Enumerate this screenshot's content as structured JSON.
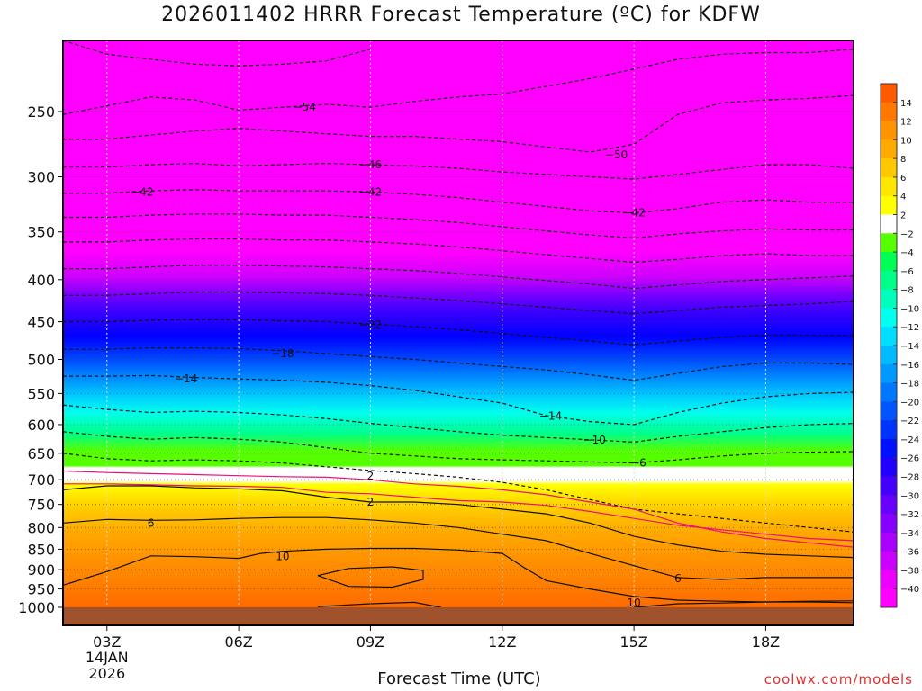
{
  "title": "2026011402 HRRR Forecast Temperature (ºC) for KDFW",
  "credit": "coolwx.com/models",
  "chart_data": {
    "type": "heatmap",
    "title": "2026011402 HRRR Forecast Temperature (ºC) for KDFW",
    "xlabel": "Forecast Time (UTC)",
    "ylabel": "",
    "x_ticks": [
      "03Z",
      "06Z",
      "09Z",
      "12Z",
      "15Z",
      "18Z"
    ],
    "x_tick_hours": [
      3,
      6,
      9,
      12,
      15,
      18
    ],
    "x_date_label": [
      "14JAN",
      "2026"
    ],
    "xlim_hours": [
      2,
      20
    ],
    "y_ticks": [
      250,
      300,
      350,
      400,
      450,
      500,
      550,
      600,
      650,
      700,
      750,
      800,
      850,
      900,
      950,
      1000
    ],
    "ylim_hpa": [
      1000,
      200
    ],
    "y_scale": "log-pressure",
    "grid": true,
    "colorbar_labels": [
      14,
      12,
      10,
      8,
      6,
      4,
      2,
      -2,
      -4,
      -6,
      -8,
      -10,
      -12,
      -14,
      -16,
      -18,
      -20,
      -22,
      -24,
      -26,
      -28,
      -30,
      -32,
      -34,
      -36,
      -38,
      -40
    ],
    "colorbar_colors": [
      "#ff5a00",
      "#ff7800",
      "#ff9400",
      "#ffaa00",
      "#ffc800",
      "#ffe600",
      "#ffff00",
      "#ffffff",
      "#55ff00",
      "#00ff55",
      "#00ff88",
      "#00ffbb",
      "#00ffee",
      "#00ddff",
      "#00bbff",
      "#0099ff",
      "#0077ff",
      "#0055ff",
      "#0033ff",
      "#0011ff",
      "#2200ff",
      "#4400ff",
      "#6600ff",
      "#8800ff",
      "#aa00ff",
      "#cc00ff",
      "#ee00ff",
      "#ff00ff"
    ],
    "ground_color": "#a0522d",
    "contour_labels": [
      {
        "value": -54,
        "hour": 7.5,
        "hpa": 247
      },
      {
        "value": -50,
        "hour": 14.6,
        "hpa": 282
      },
      {
        "value": -46,
        "hour": 9,
        "hpa": 290
      },
      {
        "value": -42,
        "hour": 3.8,
        "hpa": 313
      },
      {
        "value": -42,
        "hour": 9,
        "hpa": 313
      },
      {
        "value": -42,
        "hour": 15,
        "hpa": 332
      },
      {
        "value": -22,
        "hour": 9,
        "hpa": 454
      },
      {
        "value": -18,
        "hour": 7,
        "hpa": 492
      },
      {
        "value": -14,
        "hour": 4.8,
        "hpa": 528
      },
      {
        "value": -14,
        "hour": 13.1,
        "hpa": 586
      },
      {
        "value": -10,
        "hour": 14.1,
        "hpa": 626
      },
      {
        "value": -6,
        "hour": 15.1,
        "hpa": 668
      },
      {
        "value": 2,
        "hour": 9,
        "hpa": 693
      },
      {
        "value": 2,
        "hour": 9,
        "hpa": 745
      },
      {
        "value": 6,
        "hour": 4,
        "hpa": 790
      },
      {
        "value": 10,
        "hour": 7,
        "hpa": 868
      },
      {
        "value": 6,
        "hour": 16,
        "hpa": 923
      },
      {
        "value": 10,
        "hour": 15,
        "hpa": 987
      }
    ],
    "contours": [
      {
        "value": -58,
        "style": "dashed",
        "hours": [
          2,
          3,
          4,
          5,
          6,
          7,
          8,
          9
        ],
        "hpa": [
          205,
          213,
          216,
          219,
          220,
          219,
          217,
          210
        ]
      },
      {
        "value": -54,
        "style": "dashed",
        "hours": [
          2,
          3,
          4,
          5,
          6,
          7,
          8,
          9,
          10,
          11,
          12,
          13,
          14,
          15,
          16,
          17,
          18,
          19,
          20
        ],
        "hpa": [
          252,
          246,
          240,
          242,
          249,
          247,
          245,
          247,
          243,
          240,
          238,
          233,
          228,
          222,
          216,
          213,
          212,
          212,
          210
        ]
      },
      {
        "value": -50,
        "style": "dashed",
        "hours": [
          2,
          3,
          4,
          5,
          6,
          7,
          8,
          9,
          10,
          11,
          12,
          13,
          14,
          15,
          16,
          17,
          18,
          19,
          20
        ],
        "hpa": [
          270,
          270,
          267,
          264,
          262,
          264,
          266,
          268,
          268,
          270,
          272,
          276,
          280,
          274,
          252,
          244,
          242,
          241,
          239
        ]
      },
      {
        "value": -46,
        "style": "dashed",
        "hours": [
          2,
          3,
          4,
          5,
          6,
          7,
          8,
          9,
          10,
          11,
          12,
          13,
          14,
          15,
          16,
          17,
          18,
          19,
          20
        ],
        "hpa": [
          292,
          292,
          290,
          289,
          291,
          290,
          289,
          290,
          291,
          293,
          296,
          298,
          300,
          302,
          298,
          294,
          290,
          290,
          293
        ]
      },
      {
        "value": -42,
        "style": "dashed",
        "hours": [
          2,
          3,
          4,
          5,
          6,
          7,
          8,
          9,
          10,
          11,
          12,
          13,
          14,
          15,
          16,
          17,
          18,
          19,
          20
        ],
        "hpa": [
          314,
          314,
          312,
          311,
          312,
          312,
          312,
          313,
          315,
          318,
          322,
          326,
          330,
          332,
          328,
          322,
          320,
          322,
          322
        ]
      },
      {
        "value": -38,
        "style": "dashed",
        "hours": [
          2,
          3,
          4,
          5,
          6,
          7,
          8,
          9,
          10,
          11,
          12,
          13,
          14,
          15,
          16,
          17,
          18,
          19,
          20
        ],
        "hpa": [
          336,
          336,
          334,
          333,
          333,
          334,
          334,
          336,
          338,
          341,
          345,
          349,
          353,
          356,
          352,
          349,
          347,
          348,
          348
        ]
      },
      {
        "value": -34,
        "style": "dashed",
        "hours": [
          2,
          3,
          4,
          5,
          6,
          7,
          8,
          9,
          10,
          11,
          12,
          13,
          14,
          15,
          16,
          17,
          18,
          19,
          20
        ],
        "hpa": [
          360,
          360,
          358,
          357,
          357,
          358,
          358,
          360,
          362,
          365,
          369,
          373,
          377,
          381,
          378,
          374,
          372,
          374,
          374
        ]
      },
      {
        "value": -30,
        "style": "dashed",
        "hours": [
          2,
          3,
          4,
          5,
          6,
          7,
          8,
          9,
          10,
          11,
          12,
          13,
          14,
          15,
          16,
          17,
          18,
          19,
          20
        ],
        "hpa": [
          388,
          388,
          386,
          384,
          384,
          385,
          386,
          388,
          390,
          393,
          397,
          401,
          405,
          410,
          406,
          402,
          400,
          398,
          396
        ]
      },
      {
        "value": -26,
        "style": "dashed",
        "hours": [
          2,
          3,
          4,
          5,
          6,
          7,
          8,
          9,
          10,
          11,
          12,
          13,
          14,
          15,
          16,
          17,
          18,
          19,
          20
        ],
        "hpa": [
          418,
          418,
          416,
          414,
          414,
          415,
          416,
          418,
          421,
          424,
          428,
          432,
          436,
          440,
          436,
          432,
          430,
          428,
          425
        ]
      },
      {
        "value": -22,
        "style": "dashed",
        "hours": [
          2,
          3,
          4,
          5,
          6,
          7,
          8,
          9,
          10,
          11,
          12,
          13,
          14,
          15,
          16,
          17,
          18,
          19,
          20
        ],
        "hpa": [
          450,
          450,
          448,
          447,
          447,
          449,
          450,
          453,
          456,
          460,
          465,
          470,
          475,
          480,
          475,
          470,
          467,
          467,
          468
        ]
      },
      {
        "value": -18,
        "style": "dashed",
        "hours": [
          2,
          3,
          4,
          5,
          6,
          7,
          8,
          9,
          10,
          11,
          12,
          13,
          14,
          15,
          16,
          17,
          18,
          19,
          20
        ],
        "hpa": [
          486,
          486,
          484,
          484,
          485,
          488,
          492,
          496,
          500,
          505,
          510,
          515,
          522,
          530,
          520,
          510,
          505,
          505,
          507
        ]
      },
      {
        "value": -14,
        "style": "dashed",
        "hours": [
          2,
          3,
          4,
          5,
          6,
          7,
          8,
          9,
          10,
          11,
          12,
          13,
          14,
          15,
          16,
          17,
          18,
          19,
          20
        ],
        "hpa": [
          524,
          524,
          523,
          526,
          528,
          530,
          533,
          538,
          545,
          555,
          565,
          585,
          595,
          600,
          580,
          565,
          555,
          550,
          548
        ]
      },
      {
        "value": -10,
        "style": "dashed",
        "hours": [
          2,
          3,
          4,
          5,
          6,
          7,
          8,
          9,
          10,
          11,
          12,
          13,
          14,
          15,
          16,
          17,
          18,
          19,
          20
        ],
        "hpa": [
          568,
          575,
          580,
          578,
          580,
          584,
          590,
          598,
          605,
          612,
          618,
          622,
          626,
          630,
          620,
          612,
          605,
          600,
          598
        ]
      },
      {
        "value": -6,
        "style": "dashed",
        "hours": [
          2,
          3,
          4,
          5,
          6,
          7,
          8,
          9,
          10,
          11,
          12,
          13,
          14,
          15,
          16,
          17,
          18,
          19,
          20
        ],
        "hpa": [
          612,
          620,
          625,
          622,
          625,
          630,
          640,
          650,
          655,
          660,
          662,
          664,
          666,
          668,
          662,
          655,
          650,
          648,
          647
        ]
      },
      {
        "value": -2,
        "style": "dashed",
        "hours": [
          2,
          3,
          4,
          5,
          6,
          7,
          8,
          9,
          10,
          11,
          12,
          13,
          14,
          15,
          16,
          17,
          18,
          19,
          20
        ],
        "hpa": [
          650,
          660,
          664,
          662,
          664,
          668,
          675,
          682,
          688,
          695,
          705,
          720,
          740,
          760,
          770,
          780,
          790,
          800,
          810
        ]
      },
      {
        "value": 0,
        "style": "magenta",
        "hours": [
          2,
          3,
          4,
          5,
          6,
          7,
          8,
          9,
          10,
          11,
          12,
          13,
          14,
          15,
          16,
          17,
          18,
          19,
          20
        ],
        "hpa": [
          683,
          686,
          688,
          690,
          692,
          694,
          695,
          700,
          708,
          713,
          720,
          730,
          745,
          760,
          790,
          810,
          825,
          835,
          845
        ]
      },
      {
        "value": 0,
        "style": "magenta",
        "hours": [
          2,
          3,
          4,
          5,
          6,
          7,
          8,
          9,
          10,
          11,
          12,
          13,
          14,
          15,
          16,
          17,
          18,
          19,
          20
        ],
        "hpa": [
          708,
          708,
          710,
          712,
          713,
          715,
          725,
          728,
          735,
          742,
          745,
          752,
          765,
          780,
          795,
          805,
          815,
          825,
          830
        ]
      },
      {
        "value": 2,
        "style": "solid",
        "hours": [
          2,
          3,
          4,
          5,
          6,
          7,
          8,
          9,
          10,
          11,
          12,
          13,
          14,
          15,
          16,
          17,
          18,
          19,
          20
        ],
        "hpa": [
          720,
          712,
          712,
          716,
          718,
          722,
          735,
          745,
          745,
          750,
          760,
          770,
          790,
          820,
          840,
          855,
          862,
          866,
          870
        ]
      },
      {
        "value": 6,
        "style": "solid",
        "hours": [
          2,
          3,
          4,
          5,
          6,
          7,
          8,
          9,
          10,
          11,
          12,
          13,
          14,
          15,
          16,
          17,
          18,
          19,
          20
        ],
        "hpa": [
          790,
          782,
          784,
          783,
          780,
          778,
          778,
          783,
          790,
          800,
          815,
          830,
          860,
          890,
          920,
          925,
          920,
          920,
          920
        ]
      },
      {
        "value": 10,
        "style": "solid",
        "hours": [
          2,
          3,
          4,
          5,
          6,
          6.5,
          7,
          8,
          9,
          10,
          11,
          12,
          12.5,
          13,
          14,
          15,
          16,
          17,
          18,
          19,
          20
        ],
        "hpa": [
          940,
          905,
          866,
          868,
          872,
          860,
          855,
          850,
          848,
          848,
          852,
          860,
          895,
          928,
          950,
          970,
          980,
          983,
          985,
          985,
          987
        ]
      },
      {
        "value": 14,
        "style": "solid",
        "hours": [
          7.8,
          8.5,
          9.5,
          10.2,
          10.2,
          9.5,
          8.5,
          7.8
        ],
        "hpa": [
          915,
          897,
          893,
          902,
          925,
          945,
          943,
          915
        ]
      },
      {
        "value": 14,
        "style": "solid",
        "hours": [
          7.8,
          9,
          10,
          10.6
        ],
        "hpa": [
          998,
          990,
          986,
          1000
        ]
      },
      {
        "value": 14,
        "style": "solid",
        "hours": [
          15,
          16,
          17,
          18,
          19,
          20
        ],
        "hpa": [
          1000,
          990,
          988,
          985,
          983,
          982
        ]
      }
    ]
  }
}
